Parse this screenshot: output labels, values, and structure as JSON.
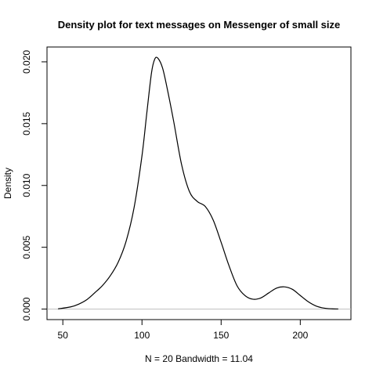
{
  "chart_data": {
    "type": "line",
    "title": "Density plot for text messages on Messenger of small size",
    "xlabel": "N = 20   Bandwidth = 11.04",
    "ylabel": "Density",
    "xlim": [
      40,
      232
    ],
    "ylim": [
      -0.00085,
      0.0212
    ],
    "x_ticks": [
      50,
      100,
      150,
      200
    ],
    "y_ticks": [
      0.0,
      0.005,
      0.01,
      0.015,
      0.02
    ],
    "x_tick_labels": [
      "50",
      "100",
      "150",
      "200"
    ],
    "y_tick_labels": [
      "0.000",
      "0.005",
      "0.010",
      "0.015",
      "0.020"
    ],
    "baseline": 0,
    "series": [
      {
        "name": "density",
        "x": [
          47,
          55,
          60,
          65,
          70,
          75,
          80,
          85,
          90,
          95,
          100,
          103,
          106,
          108,
          110,
          113,
          116,
          120,
          125,
          130,
          135,
          140,
          145,
          150,
          155,
          160,
          165,
          170,
          175,
          180,
          185,
          190,
          195,
          200,
          205,
          210,
          215,
          220,
          224
        ],
        "y": [
          2e-05,
          0.00018,
          0.0004,
          0.00075,
          0.0013,
          0.0019,
          0.0027,
          0.0038,
          0.0055,
          0.0082,
          0.0124,
          0.0158,
          0.0191,
          0.0202,
          0.0203,
          0.0195,
          0.0178,
          0.0152,
          0.0117,
          0.0095,
          0.0087,
          0.0083,
          0.0072,
          0.0054,
          0.0035,
          0.0019,
          0.0011,
          0.0008,
          0.0009,
          0.0013,
          0.0017,
          0.0018,
          0.0016,
          0.0011,
          0.0006,
          0.00025,
          8e-05,
          2e-05,
          1e-05
        ]
      }
    ]
  }
}
